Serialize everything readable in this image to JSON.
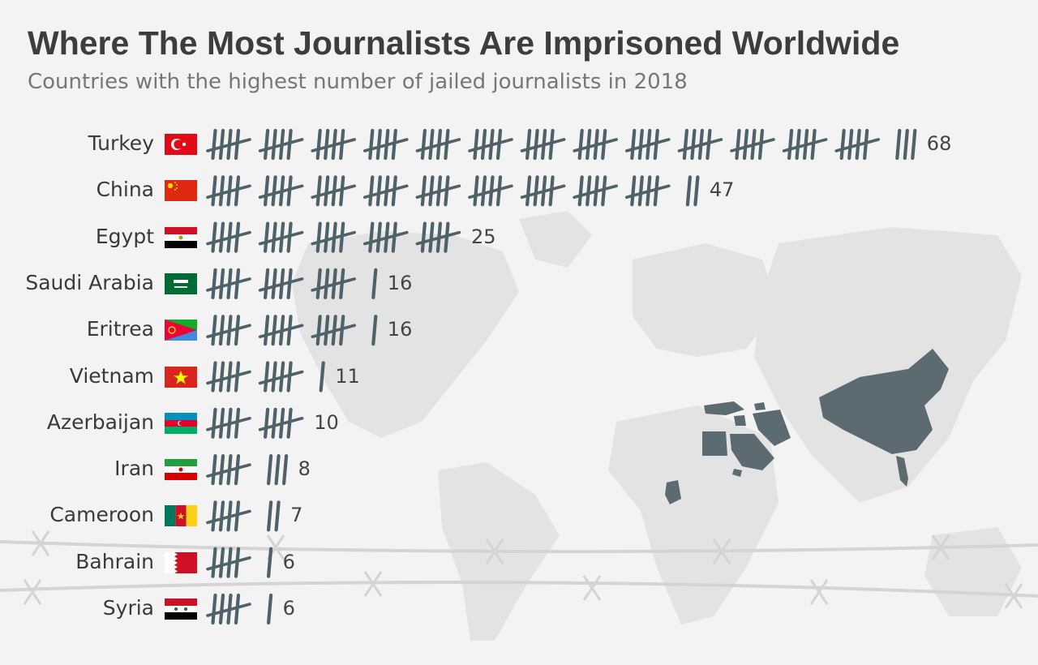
{
  "chart_data": {
    "type": "bar",
    "title": "Where The Most Journalists Are Imprisoned Worldwide",
    "subtitle": "Countries with the highest number of jailed journalists in 2018",
    "categories": [
      "Turkey",
      "China",
      "Egypt",
      "Saudi Arabia",
      "Eritrea",
      "Vietnam",
      "Azerbaijan",
      "Iran",
      "Cameroon",
      "Bahrain",
      "Syria"
    ],
    "values": [
      68,
      47,
      25,
      16,
      16,
      11,
      10,
      8,
      7,
      6,
      6
    ],
    "value_labels": [
      "68",
      "47",
      "25",
      "16",
      "16",
      "11",
      "10",
      "8",
      "7",
      "6",
      "6"
    ],
    "mark": "tally marks (groups of five)",
    "legend": "none",
    "grid": false,
    "highlighted_regions_on_map": [
      "Turkey",
      "China",
      "Egypt",
      "Saudi Arabia",
      "Iran",
      "Syria",
      "Cameroon",
      "Azerbaijan",
      "Vietnam",
      "Eritrea",
      "Bahrain"
    ]
  },
  "colors": {
    "background": "#f3f3f3",
    "tally": "#4f6169",
    "map_land": "#e3e3e3",
    "map_highlight": "#5c6b72",
    "barbed_wire": "#d6d6d6"
  },
  "flags": [
    "flag-turkey-icon",
    "flag-china-icon",
    "flag-egypt-icon",
    "flag-saudi-arabia-icon",
    "flag-eritrea-icon",
    "flag-vietnam-icon",
    "flag-azerbaijan-icon",
    "flag-iran-icon",
    "flag-cameroon-icon",
    "flag-bahrain-icon",
    "flag-syria-icon"
  ]
}
